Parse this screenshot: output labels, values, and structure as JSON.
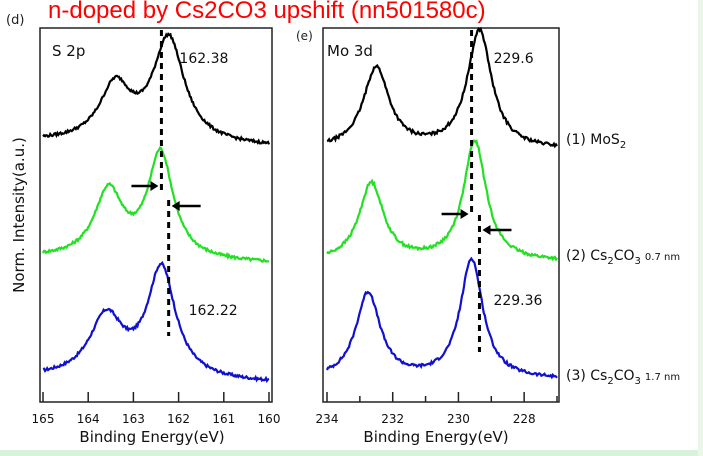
{
  "annotation_title": "n-doped by Cs2CO3 upshift (nn501580c)",
  "colors": {
    "blue": "#1010d0",
    "green": "#22e022",
    "black": "#000000",
    "title_red": "#ff0000"
  },
  "chart_data": [
    {
      "type": "line",
      "panel_label": "(d)",
      "title": "S 2p",
      "xlabel": "Binding Energy(eV)",
      "ylabel": "Norm. Intensity(a.u.)",
      "xlim": [
        165,
        160
      ],
      "x_reversed": true,
      "xticks": [
        165,
        164,
        163,
        162,
        161,
        160
      ],
      "tick_labels": [
        "165",
        "164",
        "163",
        "162",
        "161",
        "160"
      ],
      "peak_annotations": [
        {
          "text": "162.38",
          "x": 162.38,
          "series": "(3) Cs2CO3 1.7 nm"
        },
        {
          "text": "162.22",
          "x": 162.22,
          "series": "(1) MoS2"
        }
      ],
      "series": [
        {
          "name": "(3) Cs2CO3 1.7 nm",
          "color": "blue",
          "offset": 2.0,
          "peaks": [
            {
              "center": 162.38,
              "amp": 1.0,
              "width": 0.38
            },
            {
              "center": 163.6,
              "amp": 0.55,
              "width": 0.45
            }
          ]
        },
        {
          "name": "(2) Cs2CO3 0.7 nm",
          "color": "green",
          "offset": 1.0,
          "peaks": [
            {
              "center": 162.4,
              "amp": 0.92,
              "width": 0.34
            },
            {
              "center": 163.55,
              "amp": 0.58,
              "width": 0.38
            }
          ]
        },
        {
          "name": "(1) MoS2",
          "color": "black",
          "offset": 0.0,
          "peaks": [
            {
              "center": 162.22,
              "amp": 0.95,
              "width": 0.42
            },
            {
              "center": 163.4,
              "amp": 0.5,
              "width": 0.42
            }
          ]
        }
      ]
    },
    {
      "type": "line",
      "panel_label": "(e)",
      "title": "Mo 3d",
      "xlabel": "Binding Energy(eV)",
      "xlim": [
        234,
        227
      ],
      "x_reversed": true,
      "xticks": [
        234,
        233,
        232,
        231,
        230,
        229,
        228,
        227
      ],
      "labeled_ticks": [
        234,
        232,
        230,
        228
      ],
      "tick_labels": [
        "234",
        "232",
        "230",
        "228"
      ],
      "peak_annotations": [
        {
          "text": "229.6",
          "x": 229.6,
          "series": "(3) Cs2CO3 1.7 nm"
        },
        {
          "text": "229.36",
          "x": 229.36,
          "series": "(1) MoS2"
        }
      ],
      "series": [
        {
          "name": "(3) Cs2CO3 1.7 nm",
          "label_main": "(3) Cs",
          "label_sub1": "2",
          "label_mid": "CO",
          "label_sub2": "3",
          "label_thick": "1.7 nm",
          "color": "blue",
          "offset": 2.0,
          "peaks": [
            {
              "center": 229.6,
              "amp": 1.0,
              "width": 0.42
            },
            {
              "center": 232.75,
              "amp": 0.72,
              "width": 0.45
            }
          ]
        },
        {
          "name": "(2) Cs2CO3 0.7 nm",
          "label_main": "(2) Cs",
          "label_sub1": "2",
          "label_mid": "CO",
          "label_sub2": "3",
          "label_thick": "0.7 nm",
          "color": "green",
          "offset": 1.0,
          "peaks": [
            {
              "center": 229.5,
              "amp": 1.0,
              "width": 0.42
            },
            {
              "center": 232.65,
              "amp": 0.65,
              "width": 0.45
            }
          ]
        },
        {
          "name": "(1) MoS2",
          "label_main": "(1) MoS",
          "label_sub1": "2",
          "color": "black",
          "offset": 0.0,
          "peaks": [
            {
              "center": 229.36,
              "amp": 0.95,
              "width": 0.45
            },
            {
              "center": 232.5,
              "amp": 0.65,
              "width": 0.48
            }
          ]
        }
      ]
    }
  ]
}
